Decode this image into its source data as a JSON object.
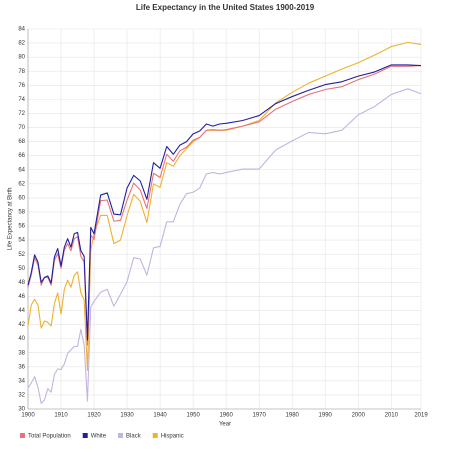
{
  "chart_data": {
    "type": "line",
    "title": "Life Expectancy in the United States 1900-2019",
    "x_label": "Year",
    "y_label": "Life Expectancy at Birth",
    "x": [
      1900,
      1901,
      1902,
      1903,
      1904,
      1905,
      1906,
      1907,
      1908,
      1909,
      1910,
      1911,
      1912,
      1913,
      1914,
      1915,
      1916,
      1917,
      1918,
      1919,
      1920,
      1922,
      1924,
      1926,
      1928,
      1930,
      1932,
      1934,
      1936,
      1938,
      1940,
      1942,
      1944,
      1946,
      1948,
      1950,
      1952,
      1954,
      1956,
      1958,
      1960,
      1965,
      1970,
      1975,
      1980,
      1985,
      1990,
      1995,
      2000,
      2005,
      2010,
      2015,
      2019
    ],
    "series": [
      {
        "name": "Total Population",
        "color": "#e8727a",
        "values": [
          47.3,
          49.1,
          51.5,
          50.5,
          47.6,
          48.7,
          48.7,
          47.6,
          51.1,
          52.1,
          50.0,
          52.6,
          53.5,
          52.5,
          54.2,
          54.5,
          51.7,
          50.9,
          39.1,
          54.7,
          54.1,
          59.6,
          59.7,
          56.7,
          56.8,
          59.7,
          62.1,
          61.1,
          58.5,
          63.5,
          62.9,
          66.2,
          65.2,
          66.7,
          67.2,
          68.2,
          68.6,
          69.6,
          69.7,
          69.6,
          69.7,
          70.2,
          70.8,
          72.6,
          73.7,
          74.7,
          75.4,
          75.8,
          76.8,
          77.6,
          78.7,
          78.7,
          78.8
        ]
      },
      {
        "name": "White",
        "color": "#1f1fa0",
        "values": [
          47.6,
          49.4,
          51.9,
          50.9,
          48.0,
          48.7,
          48.9,
          47.9,
          51.6,
          52.8,
          50.3,
          53.0,
          54.2,
          53.0,
          54.9,
          55.1,
          52.5,
          51.7,
          39.8,
          55.8,
          54.9,
          60.4,
          60.7,
          57.7,
          57.6,
          61.4,
          63.2,
          62.4,
          59.8,
          65.0,
          64.2,
          67.3,
          66.2,
          67.5,
          68.0,
          69.1,
          69.5,
          70.5,
          70.2,
          70.5,
          70.6,
          71.0,
          71.7,
          73.4,
          74.4,
          75.3,
          76.1,
          76.5,
          77.3,
          77.9,
          78.9,
          78.9,
          78.8
        ]
      },
      {
        "name": "Black",
        "color": "#c4b4e0",
        "values": [
          33.0,
          33.7,
          34.6,
          33.1,
          30.8,
          31.3,
          32.9,
          32.4,
          34.9,
          35.7,
          35.6,
          36.4,
          37.9,
          38.4,
          38.9,
          38.9,
          41.3,
          39.1,
          31.1,
          44.5,
          45.3,
          46.6,
          47.0,
          44.6,
          46.3,
          48.1,
          51.5,
          51.3,
          49.0,
          52.9,
          53.1,
          56.6,
          56.6,
          59.1,
          60.6,
          60.8,
          61.4,
          63.4,
          63.6,
          63.4,
          63.6,
          64.1,
          64.1,
          66.8,
          68.1,
          69.3,
          69.1,
          69.6,
          71.8,
          73.0,
          74.7,
          75.5,
          74.8
        ]
      },
      {
        "name": "Hispanic",
        "color": "#f0b030",
        "values": [
          41.8,
          44.8,
          45.6,
          44.8,
          41.5,
          42.5,
          42.3,
          41.8,
          45.0,
          46.5,
          43.5,
          47.0,
          48.3,
          47.3,
          49.0,
          49.5,
          46.5,
          45.5,
          35.5,
          52.5,
          55.0,
          57.5,
          57.5,
          53.5,
          54.0,
          57.5,
          60.5,
          59.5,
          56.5,
          62.0,
          61.5,
          65.0,
          64.5,
          66.0,
          67.0,
          68.0,
          68.6,
          69.6,
          69.6,
          69.6,
          69.6,
          70.2,
          71.0,
          73.5,
          75.0,
          76.3,
          77.3,
          78.3,
          79.2,
          80.3,
          81.5,
          82.1,
          81.8
        ]
      }
    ],
    "xlim": [
      1900,
      2019
    ],
    "xticks": [
      1900,
      1910,
      1920,
      1930,
      1940,
      1950,
      1960,
      1970,
      1980,
      1990,
      2000,
      2010,
      2019
    ],
    "ylim": [
      30,
      84
    ],
    "yticks": [
      30,
      32,
      34,
      36,
      38,
      40,
      42,
      44,
      46,
      48,
      50,
      52,
      54,
      56,
      58,
      60,
      62,
      64,
      66,
      68,
      70,
      72,
      74,
      76,
      78,
      80,
      82,
      84
    ],
    "grid": true,
    "legend": "bottom-left"
  }
}
